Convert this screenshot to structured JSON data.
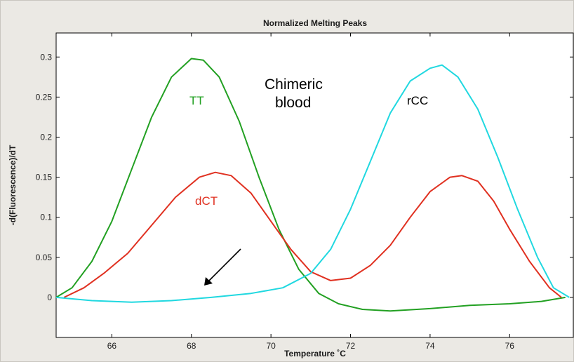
{
  "chart_data": {
    "type": "line",
    "title": "Normalized Melting Peaks",
    "xlabel": "Temperature ˚C",
    "ylabel": "-d(Fluorescence)/dT",
    "xlim": [
      64.6,
      77.6
    ],
    "ylim": [
      -0.05,
      0.33
    ],
    "x_ticks": [
      "66",
      "68",
      "70",
      "72",
      "74",
      "76"
    ],
    "y_ticks": [
      "0",
      "0.05",
      "0.1",
      "0.15",
      "0.2",
      "0.25",
      "0.3"
    ],
    "grid": false,
    "series": [
      {
        "label": "TT",
        "color": "#22a022",
        "points": [
          [
            64.6,
            0
          ],
          [
            65.0,
            0.012
          ],
          [
            65.5,
            0.045
          ],
          [
            66.0,
            0.095
          ],
          [
            66.5,
            0.16
          ],
          [
            67.0,
            0.225
          ],
          [
            67.5,
            0.275
          ],
          [
            68.0,
            0.298
          ],
          [
            68.3,
            0.296
          ],
          [
            68.7,
            0.275
          ],
          [
            69.2,
            0.22
          ],
          [
            69.7,
            0.15
          ],
          [
            70.2,
            0.085
          ],
          [
            70.7,
            0.035
          ],
          [
            71.2,
            0.005
          ],
          [
            71.7,
            -0.008
          ],
          [
            72.3,
            -0.015
          ],
          [
            73.0,
            -0.017
          ],
          [
            74.0,
            -0.014
          ],
          [
            75.0,
            -0.01
          ],
          [
            76.0,
            -0.008
          ],
          [
            76.8,
            -0.005
          ],
          [
            77.4,
            0
          ]
        ]
      },
      {
        "label": "dCT",
        "color": "#e03020",
        "points": [
          [
            64.8,
            0
          ],
          [
            65.3,
            0.012
          ],
          [
            65.8,
            0.03
          ],
          [
            66.4,
            0.055
          ],
          [
            67.0,
            0.09
          ],
          [
            67.6,
            0.125
          ],
          [
            68.2,
            0.15
          ],
          [
            68.6,
            0.156
          ],
          [
            69.0,
            0.152
          ],
          [
            69.5,
            0.13
          ],
          [
            70.0,
            0.095
          ],
          [
            70.5,
            0.06
          ],
          [
            71.0,
            0.032
          ],
          [
            71.5,
            0.021
          ],
          [
            72.0,
            0.024
          ],
          [
            72.5,
            0.04
          ],
          [
            73.0,
            0.065
          ],
          [
            73.5,
            0.1
          ],
          [
            74.0,
            0.132
          ],
          [
            74.5,
            0.15
          ],
          [
            74.8,
            0.152
          ],
          [
            75.2,
            0.145
          ],
          [
            75.6,
            0.12
          ],
          [
            76.0,
            0.085
          ],
          [
            76.5,
            0.045
          ],
          [
            77.0,
            0.012
          ],
          [
            77.3,
            0
          ]
        ]
      },
      {
        "label": "rCC",
        "color": "#20d8e0",
        "points": [
          [
            64.6,
            0
          ],
          [
            65.5,
            -0.004
          ],
          [
            66.5,
            -0.006
          ],
          [
            67.5,
            -0.004
          ],
          [
            68.5,
            0
          ],
          [
            69.5,
            0.005
          ],
          [
            70.3,
            0.012
          ],
          [
            71.0,
            0.03
          ],
          [
            71.5,
            0.06
          ],
          [
            72.0,
            0.11
          ],
          [
            72.5,
            0.17
          ],
          [
            73.0,
            0.23
          ],
          [
            73.5,
            0.27
          ],
          [
            74.0,
            0.286
          ],
          [
            74.3,
            0.29
          ],
          [
            74.7,
            0.275
          ],
          [
            75.2,
            0.235
          ],
          [
            75.7,
            0.175
          ],
          [
            76.2,
            0.11
          ],
          [
            76.7,
            0.05
          ],
          [
            77.1,
            0.012
          ],
          [
            77.5,
            0
          ]
        ]
      }
    ],
    "annotations": [
      {
        "text": "TT",
        "color": "#22a022"
      },
      {
        "text": "dCT",
        "color": "#e03020"
      },
      {
        "text": "rCC",
        "color": "#000000"
      },
      {
        "text": "Chimeric",
        "color": "#000000"
      },
      {
        "text": "blood",
        "color": "#000000"
      }
    ]
  }
}
